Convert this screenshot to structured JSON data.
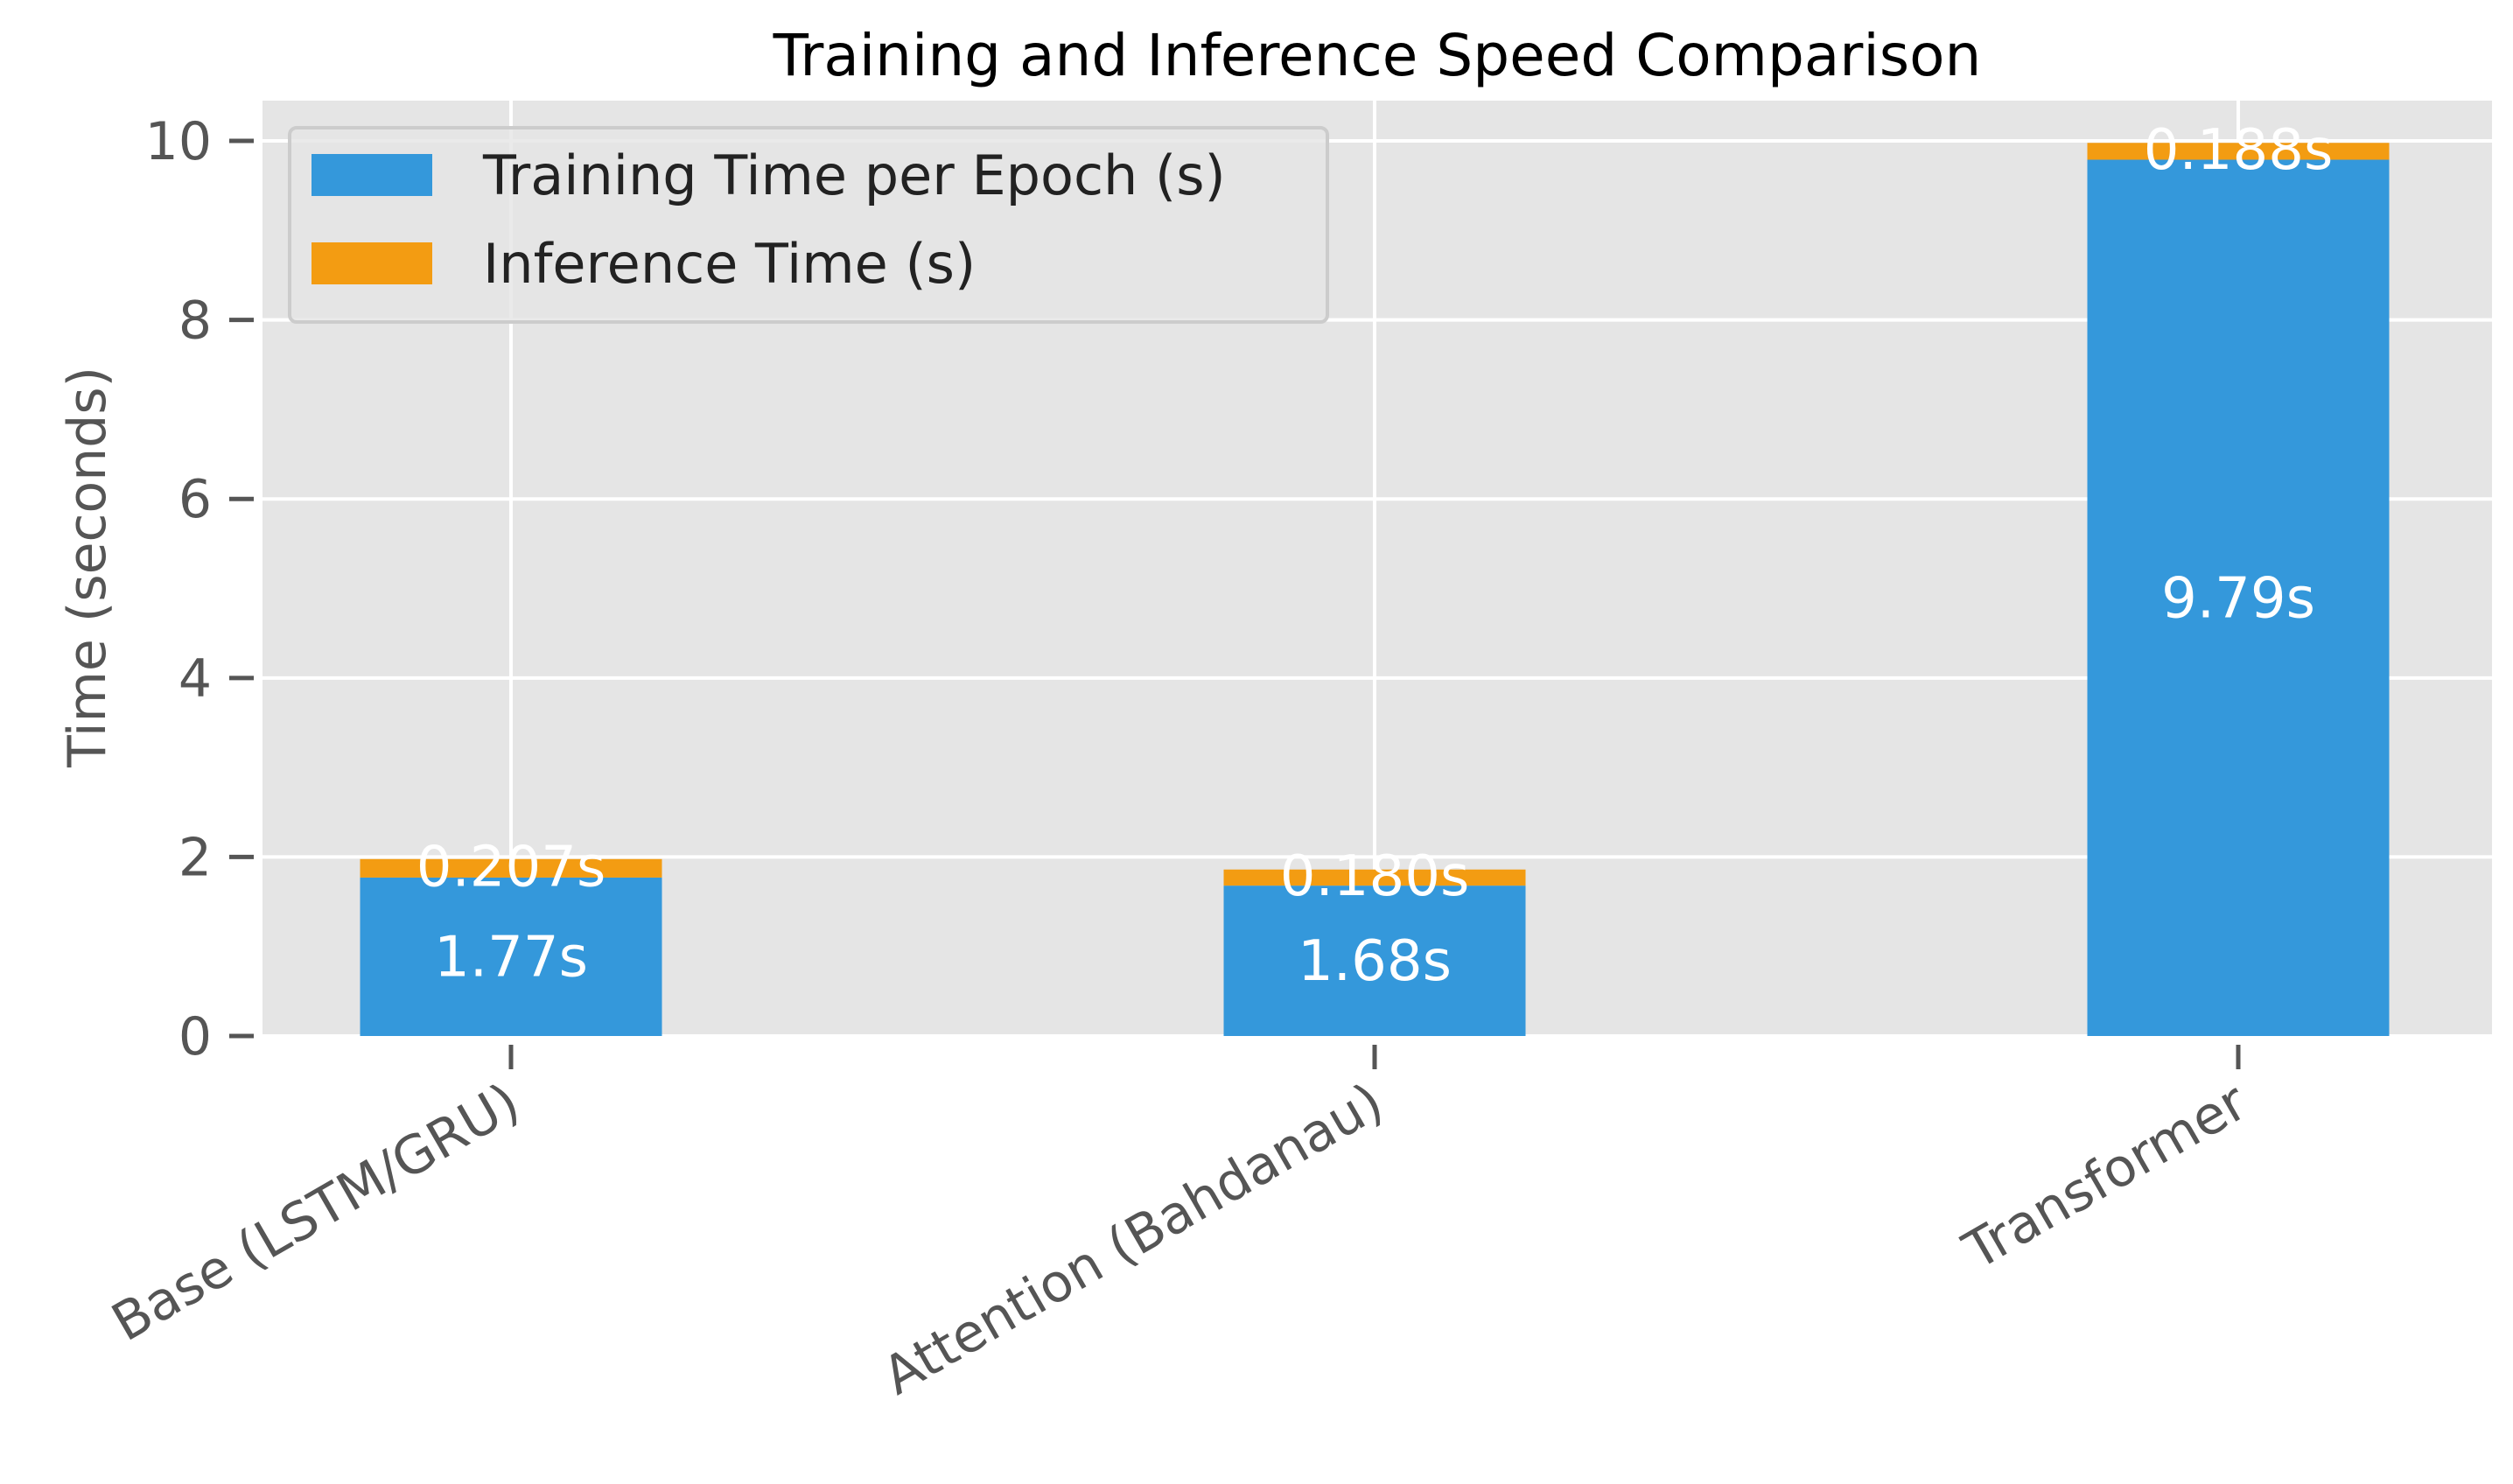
{
  "chart_data": {
    "type": "bar",
    "stacked": true,
    "title": "Training and Inference Speed Comparison",
    "xlabel": "",
    "ylabel": "Time (seconds)",
    "ylim": [
      0,
      10.45
    ],
    "yticks": [
      0,
      2,
      4,
      6,
      8,
      10
    ],
    "grid": true,
    "legend_position": "top-left",
    "categories": [
      "Base (LSTM/GRU)",
      "Attention (Bahdanau)",
      "Transformer"
    ],
    "series": [
      {
        "name": "Training Time per Epoch (s)",
        "color": "#3498db",
        "values": [
          1.77,
          1.68,
          9.79
        ],
        "labels": [
          "1.77s",
          "1.68s",
          "9.79s"
        ]
      },
      {
        "name": "Inference Time (s)",
        "color": "#f39c12",
        "values": [
          0.207,
          0.18,
          0.188
        ],
        "labels": [
          "0.207s",
          "0.180s",
          "0.188s"
        ]
      }
    ]
  }
}
